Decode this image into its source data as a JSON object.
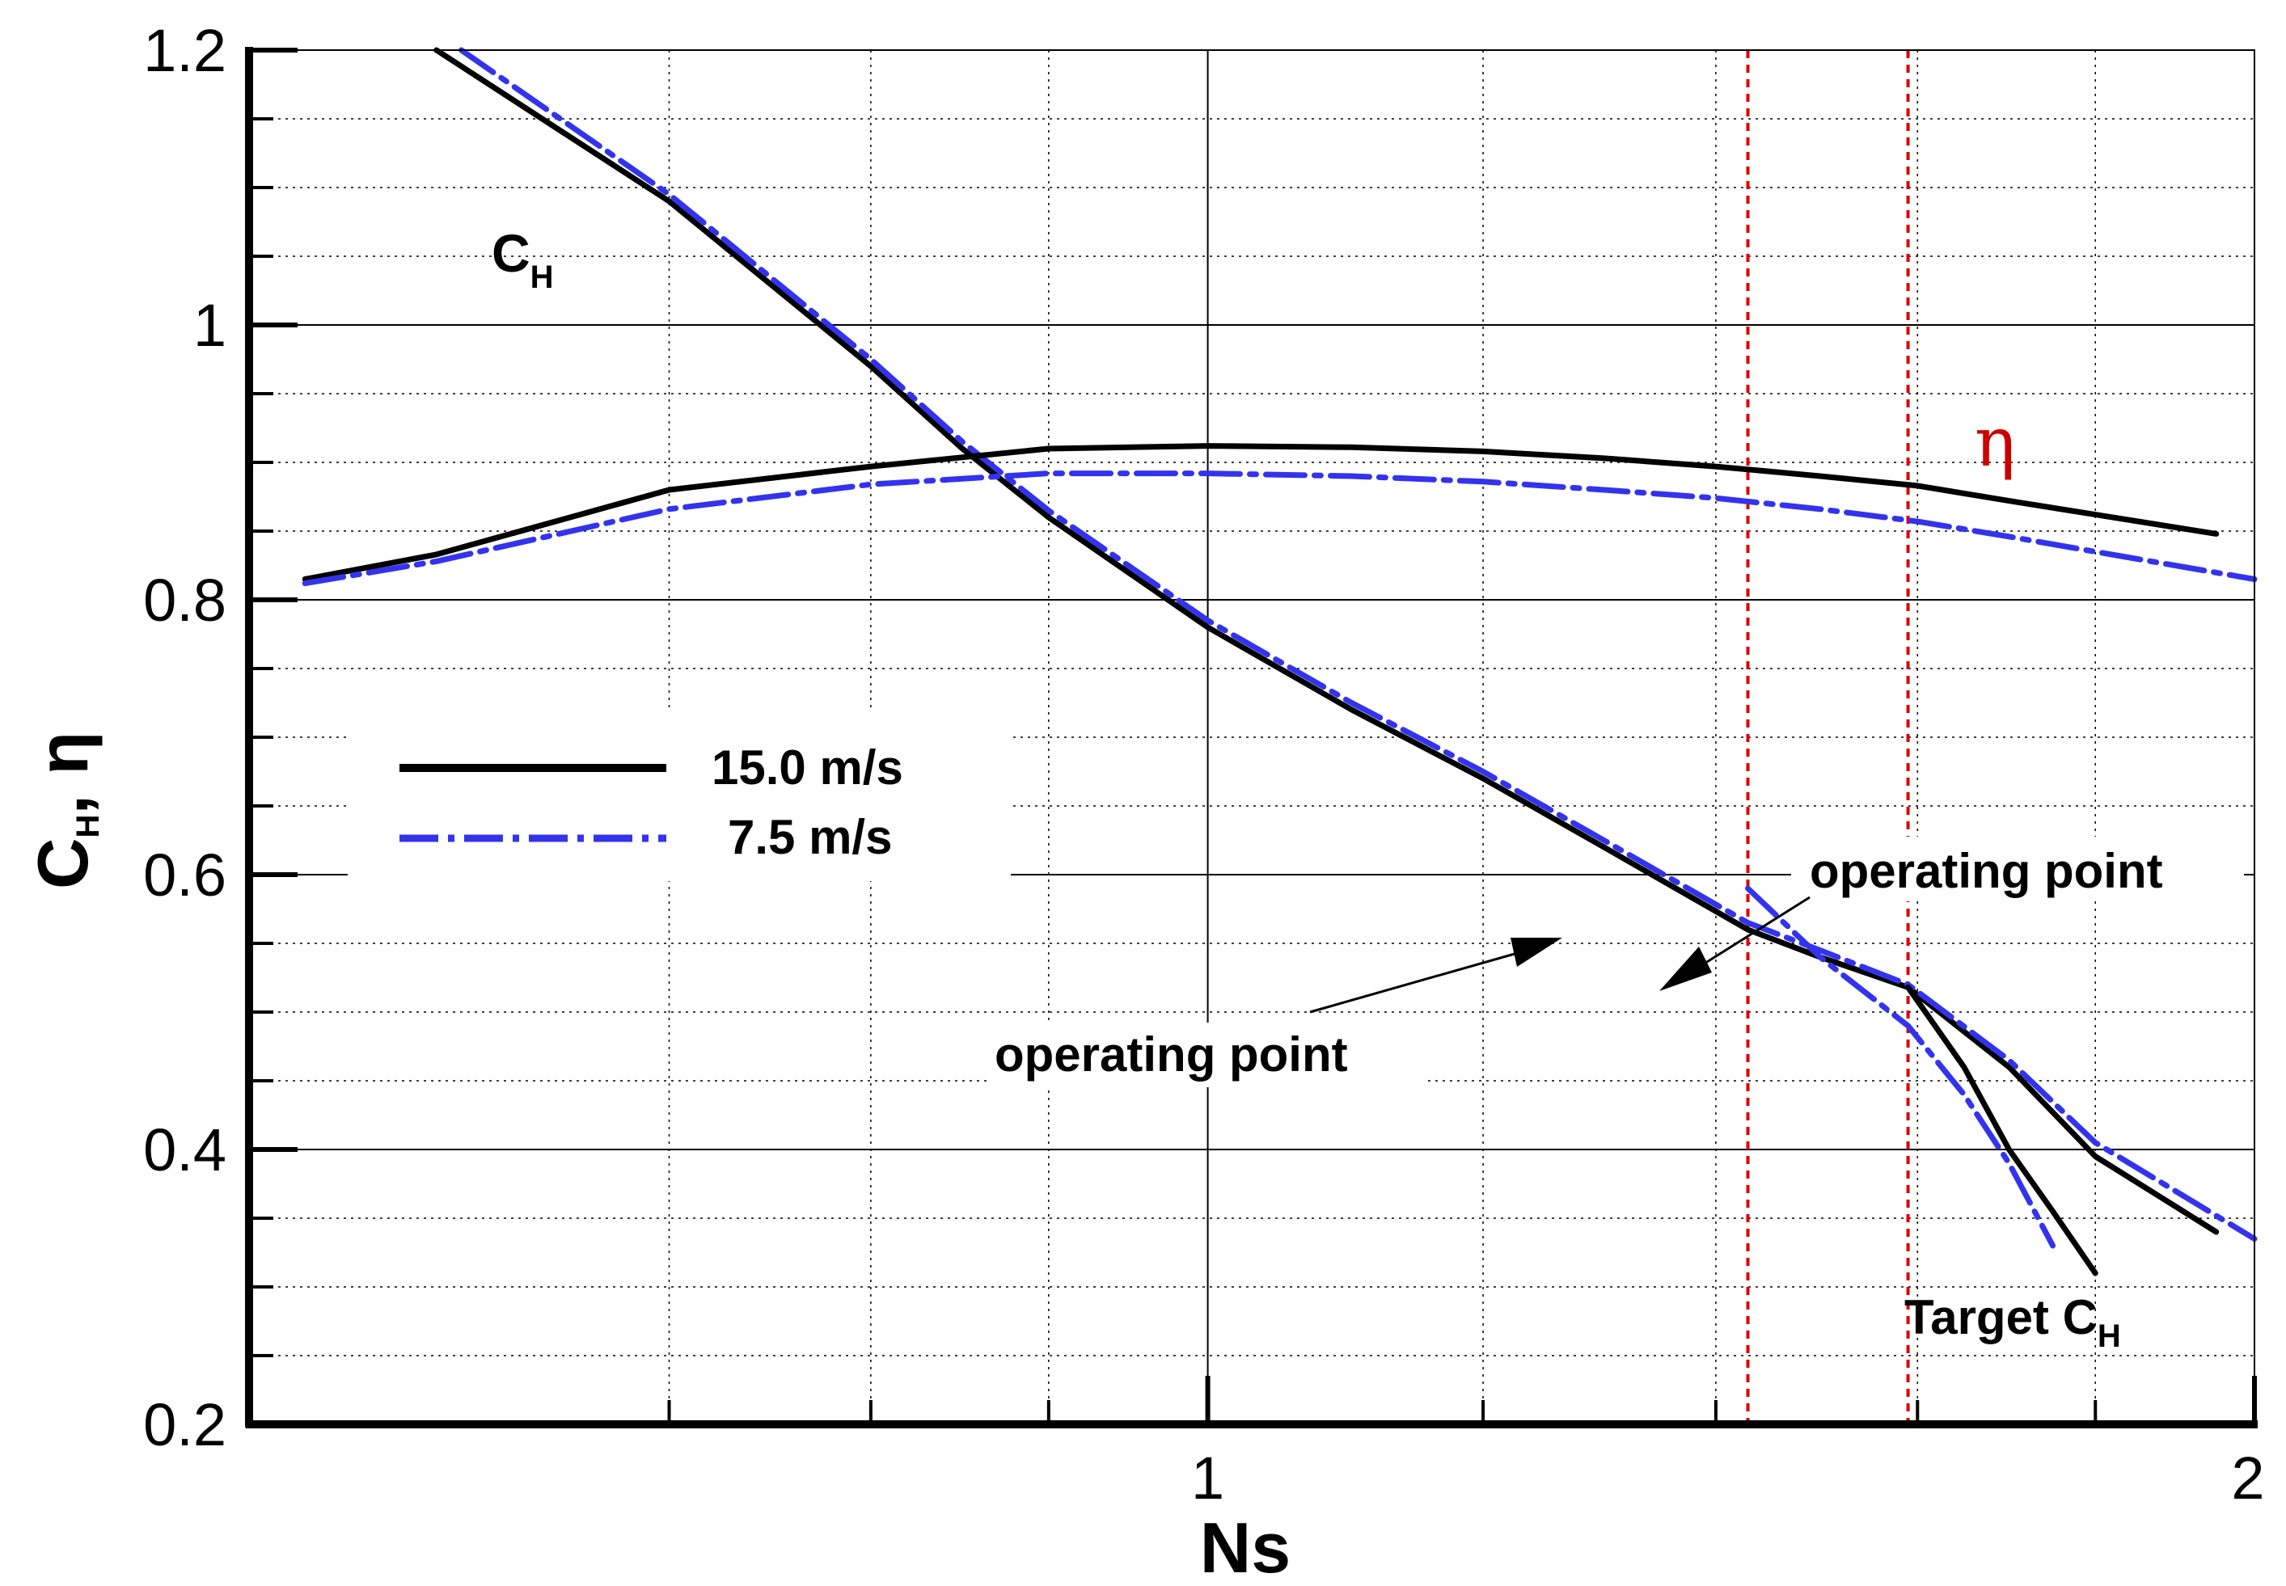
{
  "chart_data": {
    "type": "line",
    "xlabel": "Ns",
    "ylabel": "C_H, η",
    "xscale": "log",
    "xlim": [
      0.53,
      2.0
    ],
    "ylim": [
      0.2,
      1.2
    ],
    "x_ticks": [
      "1",
      "2"
    ],
    "y_ticks": [
      "0.2",
      "0.4",
      "0.6",
      "0.8",
      "1",
      "1.2"
    ],
    "grid": true,
    "legend": {
      "placement": "center-left",
      "entries": [
        {
          "name": "15.0 m/s",
          "color": "#000000",
          "style": "solid"
        },
        {
          "name": "7.5 m/s",
          "color": "#3333ee",
          "style": "dashdot"
        }
      ]
    },
    "vertical_reference_lines": {
      "x": [
        1.43,
        1.59
      ],
      "color": "#dd0000",
      "style": "dashed"
    },
    "series": [
      {
        "name": "15.0 m/s",
        "curve": "C_H",
        "color": "#000000",
        "x": [
          0.6,
          0.7,
          0.8,
          0.85,
          0.9,
          1.0,
          1.1,
          1.2,
          1.3,
          1.43,
          1.5,
          1.59,
          1.7,
          1.8,
          1.95
        ],
        "y": [
          1.2,
          1.09,
          0.97,
          0.91,
          0.86,
          0.78,
          0.72,
          0.67,
          0.62,
          0.56,
          0.54,
          0.518,
          0.46,
          0.395,
          0.34
        ]
      },
      {
        "name": "7.5 m/s",
        "curve": "C_H",
        "color": "#3333ee",
        "x": [
          0.61,
          0.7,
          0.8,
          0.85,
          0.9,
          1.0,
          1.1,
          1.2,
          1.3,
          1.43,
          1.5,
          1.59,
          1.7,
          1.8,
          2.0
        ],
        "y": [
          1.2,
          1.095,
          0.975,
          0.915,
          0.865,
          0.785,
          0.725,
          0.675,
          0.625,
          0.565,
          0.545,
          0.52,
          0.465,
          0.405,
          0.335
        ]
      },
      {
        "name": "15.0 m/s",
        "curve": "η",
        "color": "#000000",
        "x": [
          0.55,
          0.6,
          0.7,
          0.8,
          0.9,
          1.0,
          1.1,
          1.2,
          1.3,
          1.4,
          1.5,
          1.6,
          1.7,
          1.8,
          1.95
        ],
        "y": [
          0.815,
          0.833,
          0.88,
          0.897,
          0.91,
          0.912,
          0.911,
          0.908,
          0.903,
          0.897,
          0.89,
          0.883,
          0.872,
          0.862,
          0.848
        ]
      },
      {
        "name": "7.5 m/s",
        "curve": "η",
        "color": "#3333ee",
        "x": [
          0.55,
          0.6,
          0.7,
          0.8,
          0.9,
          1.0,
          1.1,
          1.2,
          1.3,
          1.4,
          1.5,
          1.6,
          1.7,
          1.8,
          2.0
        ],
        "y": [
          0.812,
          0.828,
          0.866,
          0.884,
          0.892,
          0.892,
          0.89,
          0.886,
          0.88,
          0.874,
          0.866,
          0.857,
          0.846,
          0.835,
          0.815
        ]
      },
      {
        "name": "Target C_H (15.0 m/s)",
        "curve": "Target C_H",
        "color": "#000000",
        "x": [
          1.59,
          1.65,
          1.7,
          1.75,
          1.8
        ],
        "y": [
          0.518,
          0.46,
          0.4,
          0.355,
          0.31
        ]
      },
      {
        "name": "Target C_H (7.5 m/s)",
        "curve": "Target C_H",
        "color": "#3333ee",
        "x": [
          1.43,
          1.5,
          1.59,
          1.65,
          1.7,
          1.75
        ],
        "y": [
          0.59,
          0.54,
          0.49,
          0.44,
          0.39,
          0.33
        ]
      }
    ],
    "annotations": {
      "ch_label": {
        "main": "C",
        "sub": "H"
      },
      "eta_label": "η",
      "op_point_right": "operating point",
      "op_point_left": "operating point",
      "target_label": {
        "main": "Target C",
        "sub": "H"
      },
      "ylabel_parts": {
        "main": "C",
        "sub": "H",
        "rest": ", η"
      }
    }
  }
}
